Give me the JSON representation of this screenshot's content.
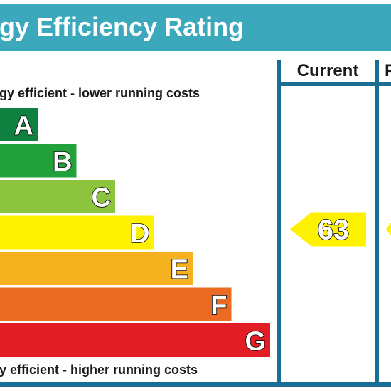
{
  "title": "gy Efficiency Rating",
  "columns": [
    "Current",
    "P"
  ],
  "top_note": "gy efficient - lower running costs",
  "bottom_note": "y efficient - higher running costs",
  "colors": {
    "header": "#3ba9bb",
    "frame": "#1a6e94",
    "A": "#0f8040",
    "B": "#22a03a",
    "C": "#8cc43e",
    "D": "#fff200",
    "E": "#f6b11f",
    "F": "#ec6b23",
    "G": "#e31d25",
    "arrow": "#fff200"
  },
  "chart_data": {
    "type": "bar",
    "categories": [
      "A",
      "B",
      "C",
      "D",
      "E",
      "F",
      "G"
    ],
    "values": [
      1,
      2,
      3,
      4,
      5,
      6,
      7
    ],
    "current": {
      "value": "63",
      "band": "D"
    }
  }
}
